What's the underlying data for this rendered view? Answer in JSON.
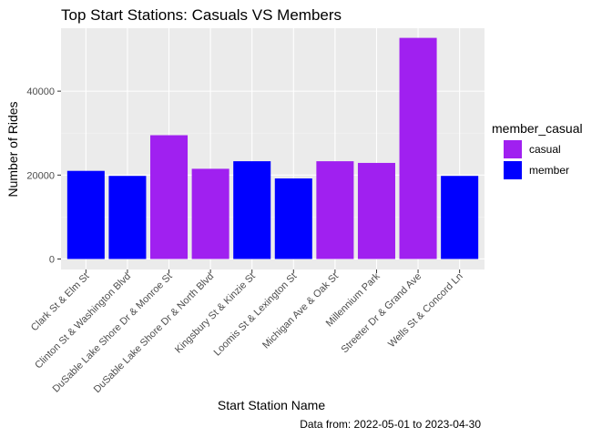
{
  "chart_data": {
    "type": "bar",
    "title": "Top Start Stations: Casuals VS Members",
    "xlabel": "Start Station Name",
    "ylabel": "Number of Rides",
    "caption": "Data from: 2022-05-01 to 2023-04-30",
    "ylim": [
      -2500,
      55000
    ],
    "yticks": [
      0,
      20000,
      40000
    ],
    "ytick_labels": [
      "0",
      "20000",
      "40000"
    ],
    "grid": true,
    "legend": {
      "title": "member_casual",
      "position": "right",
      "entries": [
        {
          "label": "casual",
          "color": "#A020F0"
        },
        {
          "label": "member",
          "color": "#0000FF"
        }
      ]
    },
    "categories": [
      "Clark St & Elm St",
      "Clinton St & Washington Blvd",
      "DuSable Lake Shore Dr & Monroe St",
      "DuSable Lake Shore Dr & North Blvd",
      "Kingsbury St & Kinzie St",
      "Loomis St & Lexington St",
      "Michigan Ave & Oak St",
      "Millennium Park",
      "Streeter Dr & Grand Ave",
      "Wells St & Concord Ln"
    ],
    "values": [
      21000,
      19800,
      29500,
      21500,
      23300,
      19200,
      23300,
      22900,
      52700,
      19800
    ],
    "groups": [
      "member",
      "member",
      "casual",
      "casual",
      "member",
      "member",
      "casual",
      "casual",
      "casual",
      "member"
    ]
  },
  "colors": {
    "panel_background": "#EBEBEB",
    "grid_major": "#FFFFFF",
    "grid_minor": "#F5F5F5",
    "casual": "#A020F0",
    "member": "#0000FF"
  }
}
